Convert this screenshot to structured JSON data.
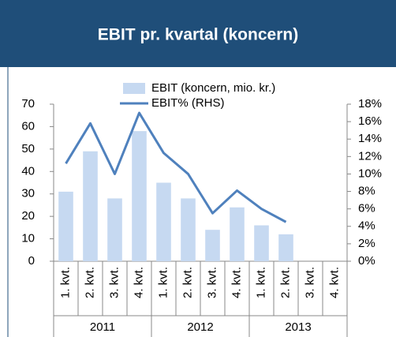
{
  "chart_data": {
    "type": "bar",
    "title": "EBIT pr. kvartal (koncern)",
    "categories": [
      "1. kvt.",
      "2. kvt.",
      "3. kvt.",
      "4. kvt.",
      "1. kvt.",
      "2. kvt.",
      "3. kvt.",
      "4. kvt.",
      "1. kvt.",
      "2. kvt.",
      "3. kvt.",
      "4. kvt."
    ],
    "groups": [
      "2011",
      "2012",
      "2013"
    ],
    "series": [
      {
        "name": "EBIT (koncern, mio. kr.)",
        "type": "bar",
        "color": "#c6d9f1",
        "values": [
          31,
          49,
          28,
          58,
          35,
          28,
          14,
          24,
          16,
          12,
          null,
          null
        ]
      },
      {
        "name": "EBIT% (RHS)",
        "type": "line",
        "axis": "y2",
        "color": "#4f81bd",
        "values": [
          11.2,
          15.8,
          10.0,
          17.0,
          12.4,
          10.0,
          5.5,
          8.1,
          6.0,
          4.5,
          null,
          null
        ]
      }
    ],
    "ylim": [
      0,
      70
    ],
    "yticks": [
      0,
      10,
      20,
      30,
      40,
      50,
      60,
      70
    ],
    "y2lim": [
      0,
      18
    ],
    "y2ticks": [
      {
        "value": 0,
        "label": "0%"
      },
      {
        "value": 2,
        "label": "2%"
      },
      {
        "value": 4,
        "label": "4%"
      },
      {
        "value": 6,
        "label": "6%"
      },
      {
        "value": 8,
        "label": "8%"
      },
      {
        "value": 10,
        "label": "10%"
      },
      {
        "value": 12,
        "label": "12%"
      },
      {
        "value": 14,
        "label": "14%"
      },
      {
        "value": 16,
        "label": "16%"
      },
      {
        "value": 18,
        "label": "18%"
      }
    ]
  }
}
